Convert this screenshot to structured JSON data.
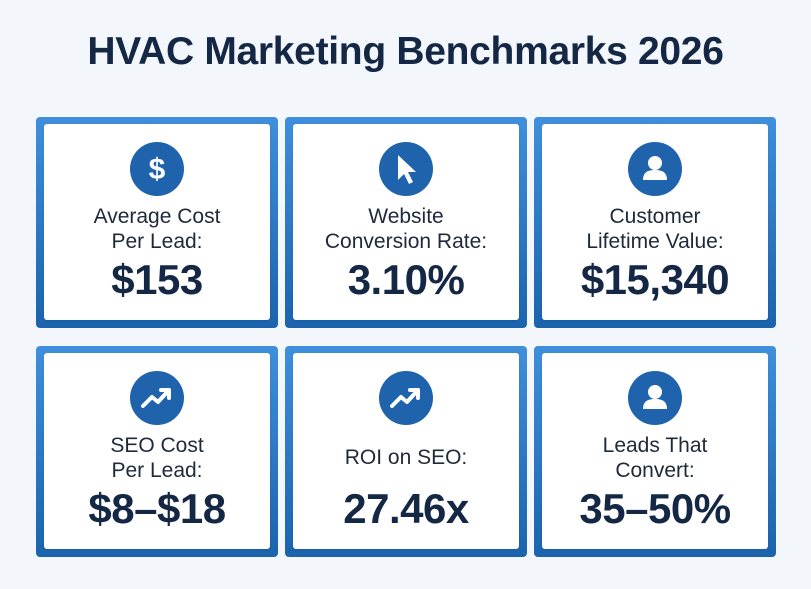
{
  "title": "HVAC Marketing Benchmarks 2026",
  "cards": [
    {
      "icon": "dollar-icon",
      "label": "Average Cost\nPer Lead:",
      "value": "$153"
    },
    {
      "icon": "cursor-icon",
      "label": "Website\nConversion Rate:",
      "value": "3.10%"
    },
    {
      "icon": "user-icon",
      "label": "Customer\nLifetime Value:",
      "value": "$15,340"
    },
    {
      "icon": "trend-up-icon",
      "label": "SEO Cost\nPer Lead:",
      "value": "$8–$18"
    },
    {
      "icon": "trend-up-icon",
      "label": "ROI on SEO:",
      "value": "27.46x"
    },
    {
      "icon": "user-icon",
      "label": "Leads That\nConvert:",
      "value": "35–50%"
    }
  ],
  "colors": {
    "accent": "#1f63ac",
    "frame": "#3f8fdc",
    "text": "#142846"
  }
}
